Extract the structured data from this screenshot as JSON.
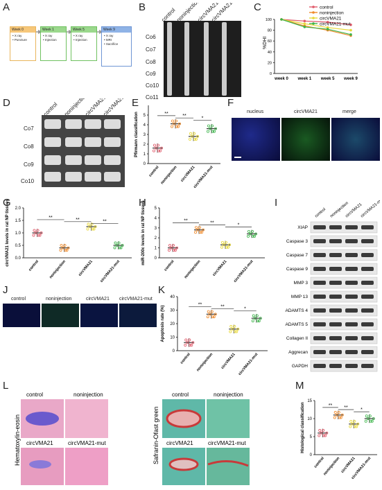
{
  "panel_letters": [
    "A",
    "B",
    "C",
    "D",
    "E",
    "F",
    "G",
    "H",
    "I",
    "J",
    "K",
    "L",
    "M"
  ],
  "colors": {
    "control": "#e05a6a",
    "noninjection": "#f08a2a",
    "circVMA21": "#e8d83a",
    "circVMA21_mut": "#3cb44a"
  },
  "groups": [
    "control",
    "noninjection",
    "circVMA21",
    "circVMA21-mut"
  ],
  "A": {
    "steps": [
      {
        "title": "Week 0",
        "items": [
          "X ray",
          "Puncture"
        ],
        "color": "#f6c77a"
      },
      {
        "title": "Week 1",
        "items": [
          "X ray",
          "Injection"
        ],
        "color": "#9bd88d"
      },
      {
        "title": "Week 5",
        "items": [
          "X ray",
          "Injection"
        ],
        "color": "#9bd88d"
      },
      {
        "title": "Week 9",
        "items": [
          "X ray",
          "MRI",
          "Sacrifice"
        ],
        "color": "#8fb3e6"
      }
    ]
  },
  "B": {
    "columns": [
      "control",
      "noninjection",
      "circVMA21",
      "circVMA21-mut"
    ],
    "rows": [
      "Co6",
      "Co7",
      "Co8",
      "Co9",
      "Co10",
      "Co11"
    ]
  },
  "C": {
    "ylabel": "%DHI",
    "chart_data": {
      "type": "line",
      "categories": [
        "week 0",
        "week 1",
        "week 5",
        "week 9"
      ],
      "ylim": [
        0,
        100
      ],
      "yticks": [
        0,
        20,
        40,
        60,
        80,
        100
      ],
      "series": [
        {
          "name": "control",
          "values": [
            100,
            97,
            95,
            90
          ]
        },
        {
          "name": "noninjection",
          "values": [
            100,
            88,
            80,
            70
          ]
        },
        {
          "name": "circVMA21",
          "values": [
            100,
            92,
            85,
            80
          ]
        },
        {
          "name": "circVMA21-mut",
          "values": [
            100,
            86,
            82,
            72
          ]
        }
      ]
    }
  },
  "D": {
    "columns": [
      "control",
      "noninjection",
      "circVMA21",
      "circVMA21-mut"
    ],
    "rows": [
      "Co7",
      "Co8",
      "Co9",
      "Co10"
    ]
  },
  "E": {
    "ylabel": "Pfirmann classification",
    "yticks": [
      0,
      1,
      2,
      3,
      4,
      5
    ],
    "ylim": [
      0,
      6
    ],
    "means": [
      1.6,
      4.1,
      2.8,
      3.6
    ],
    "sig": [
      "**",
      "**",
      "*"
    ]
  },
  "F": {
    "titles": [
      "nucleus",
      "circVMA21",
      "merge"
    ]
  },
  "G": {
    "ylabel": "circVMA21 levels in rat NP tissues",
    "yticks": [
      "0.0",
      "0.5",
      "1.0",
      "1.5",
      "2.0"
    ],
    "ylim": [
      0,
      2
    ],
    "means": [
      1.0,
      0.4,
      1.25,
      0.5
    ],
    "sig": [
      "**",
      "**",
      "**"
    ]
  },
  "H": {
    "ylabel": "miR-200c levels in rat NP tissues",
    "yticks": [
      0,
      1,
      2,
      3,
      4,
      5
    ],
    "ylim": [
      0,
      5
    ],
    "means": [
      1.0,
      2.8,
      1.3,
      2.4
    ],
    "sig": [
      "**",
      "**",
      "*"
    ]
  },
  "I": {
    "columns": [
      "control",
      "noninjection",
      "circVMA21",
      "circVMA21-mut"
    ],
    "proteins": [
      "XIAP",
      "Caspase 3",
      "Caspase 7",
      "Caspase 9",
      "MMP 3",
      "MMP 13",
      "ADAMTS 4",
      "ADAMTS 5",
      "Collagen II",
      "Aggrecan",
      "GAPDH"
    ]
  },
  "J": {
    "titles": [
      "control",
      "noninjection",
      "circVMA21",
      "circVMA21-mut"
    ]
  },
  "K": {
    "ylabel": "Apoptosis rate (%)",
    "yticks": [
      0,
      10,
      20,
      30,
      40
    ],
    "ylim": [
      0,
      40
    ],
    "means": [
      6,
      27,
      16,
      24
    ],
    "sig": [
      "**",
      "**",
      "*"
    ]
  },
  "L": {
    "left_stain": "Hematoxylin-eosin",
    "right_stain": "Safranin-Ofast green",
    "titles": [
      "control",
      "noninjection",
      "circVMA21",
      "circVMA21-mut"
    ]
  },
  "M": {
    "ylabel": "Histological classification",
    "yticks": [
      0,
      5,
      10,
      15
    ],
    "ylim": [
      0,
      15
    ],
    "means": [
      6,
      11,
      8.5,
      10
    ],
    "sig": [
      "**",
      "**",
      "*"
    ]
  },
  "category_labels": [
    "control",
    "noninjection",
    "circVMA21",
    "circVMA21-mut"
  ]
}
